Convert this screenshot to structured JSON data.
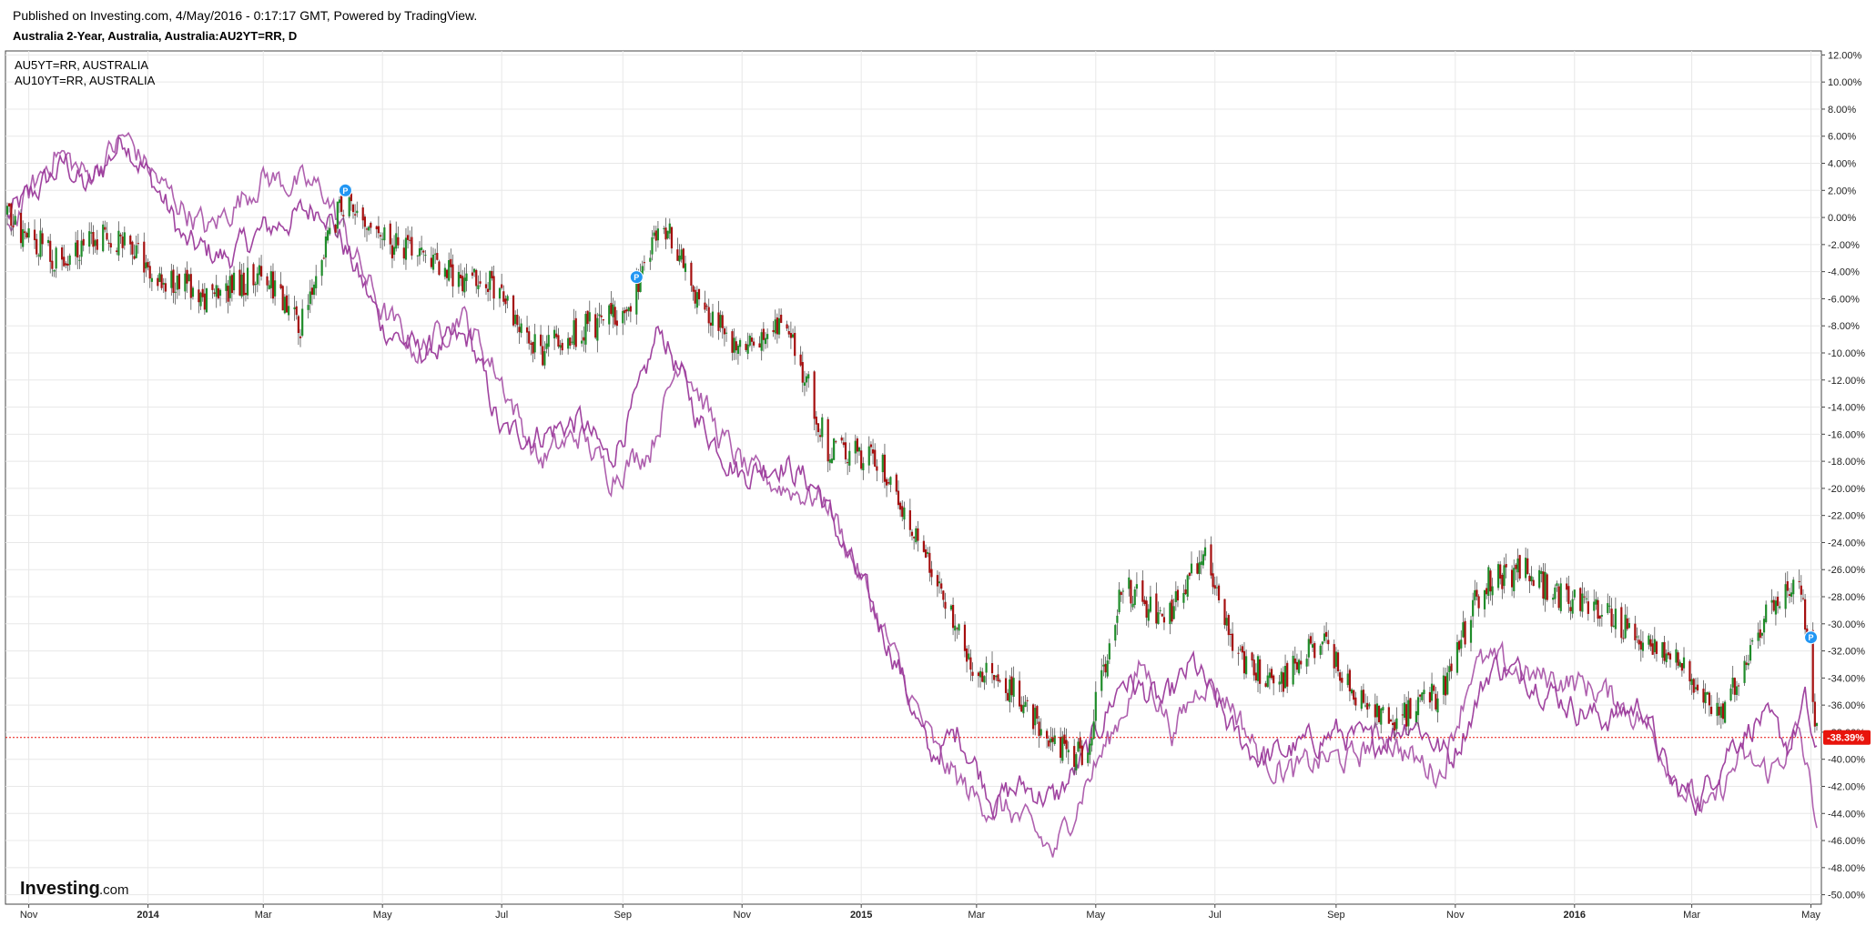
{
  "header": {
    "published": "Published on Investing.com, 4/May/2016 - 0:17:17 GMT, Powered by TradingView.",
    "title": "Australia 2-Year, Australia, Australia:AU2YT=RR, D"
  },
  "legend": [
    "AU5YT=RR, AUSTRALIA",
    "AU10YT=RR, AUSTRALIA"
  ],
  "brand": {
    "main": "Investing",
    "suffix": ".com"
  },
  "colors": {
    "up": "#1f8c2a",
    "down": "#a50f0f",
    "compare": "#9b3a9b",
    "last_value_bg": "#e8140c",
    "marker": "#2196f3",
    "grid": "#e8e8e8"
  },
  "chart_data": {
    "type": "line",
    "subtype": "percentage-change candlestick with comparison series",
    "y_unit": "%",
    "ylim": [
      -51,
      13
    ],
    "y_ticks": [
      12,
      10,
      8,
      6,
      4,
      2,
      0,
      -2,
      -4,
      -6,
      -8,
      -10,
      -12,
      -14,
      -16,
      -18,
      -20,
      -22,
      -24,
      -26,
      -28,
      -30,
      -32,
      -34,
      -36,
      -38,
      -40,
      -42,
      -44,
      -46,
      -48,
      -50
    ],
    "y_tick_labels": [
      "12.00%",
      "10.00%",
      "8.00%",
      "6.00%",
      "4.00%",
      "2.00%",
      "0.00%",
      "-2.00%",
      "-4.00%",
      "-6.00%",
      "-8.00%",
      "-10.00%",
      "-12.00%",
      "-14.00%",
      "-16.00%",
      "-18.00%",
      "-20.00%",
      "-22.00%",
      "-24.00%",
      "-26.00%",
      "-28.00%",
      "-30.00%",
      "-32.00%",
      "-34.00%",
      "-36.00%",
      "-38.00%",
      "-40.00%",
      "-42.00%",
      "-44.00%",
      "-46.00%",
      "-48.00%",
      "-50.00%"
    ],
    "x_range": [
      "2013-10-21",
      "2016-05-04"
    ],
    "x_ticks": [
      {
        "label": "Nov",
        "date": "2013-11-01",
        "bold": false
      },
      {
        "label": "2014",
        "date": "2014-01-01",
        "bold": true
      },
      {
        "label": "Mar",
        "date": "2014-03-01",
        "bold": false
      },
      {
        "label": "May",
        "date": "2014-05-01",
        "bold": false
      },
      {
        "label": "Jul",
        "date": "2014-07-01",
        "bold": false
      },
      {
        "label": "Sep",
        "date": "2014-09-01",
        "bold": false
      },
      {
        "label": "Nov",
        "date": "2014-11-01",
        "bold": false
      },
      {
        "label": "2015",
        "date": "2015-01-01",
        "bold": true
      },
      {
        "label": "Mar",
        "date": "2015-03-01",
        "bold": false
      },
      {
        "label": "May",
        "date": "2015-05-01",
        "bold": false
      },
      {
        "label": "Jul",
        "date": "2015-07-01",
        "bold": false
      },
      {
        "label": "Sep",
        "date": "2015-09-01",
        "bold": false
      },
      {
        "label": "Nov",
        "date": "2015-11-01",
        "bold": false
      },
      {
        "label": "2016",
        "date": "2016-01-01",
        "bold": true
      },
      {
        "label": "Mar",
        "date": "2016-03-01",
        "bold": false
      },
      {
        "label": "May",
        "date": "2016-05-01",
        "bold": false
      }
    ],
    "last_value": -38.39,
    "last_value_label": "-38.39%",
    "markers": [
      {
        "date": "2014-04-12",
        "value": 2.0,
        "label": "P"
      },
      {
        "date": "2014-09-08",
        "value": -4.4,
        "label": "P"
      },
      {
        "date": "2016-05-01",
        "value": -31.0,
        "label": "P"
      }
    ],
    "series": [
      {
        "name": "AUSTRALIA 2-YEAR",
        "style": "candlestick",
        "dates": [
          "2013-10-21",
          "2013-11-15",
          "2013-12-10",
          "2014-01-05",
          "2014-02-01",
          "2014-03-01",
          "2014-03-20",
          "2014-04-10",
          "2014-05-05",
          "2014-06-01",
          "2014-06-25",
          "2014-07-20",
          "2014-08-15",
          "2014-09-05",
          "2014-09-20",
          "2014-10-10",
          "2014-11-01",
          "2014-11-25",
          "2014-12-15",
          "2015-01-10",
          "2015-02-01",
          "2015-02-25",
          "2015-03-20",
          "2015-04-10",
          "2015-04-25",
          "2015-05-15",
          "2015-06-05",
          "2015-06-25",
          "2015-07-15",
          "2015-08-05",
          "2015-08-25",
          "2015-09-15",
          "2015-10-05",
          "2015-10-25",
          "2015-11-15",
          "2015-12-05",
          "2015-12-25",
          "2016-01-15",
          "2016-02-05",
          "2016-02-25",
          "2016-03-15",
          "2016-04-05",
          "2016-04-25",
          "2016-05-04"
        ],
        "values": [
          0.0,
          -3.0,
          -1.0,
          -4.0,
          -6.0,
          -4.0,
          -8.0,
          1.0,
          -2.0,
          -4.0,
          -5.0,
          -10.0,
          -8.0,
          -7.0,
          0.0,
          -6.0,
          -10.0,
          -8.0,
          -17.0,
          -18.0,
          -24.0,
          -33.0,
          -35.0,
          -39.0,
          -40.0,
          -27.0,
          -30.0,
          -25.0,
          -33.0,
          -34.0,
          -31.0,
          -36.0,
          -37.0,
          -35.0,
          -27.0,
          -26.0,
          -28.0,
          -29.0,
          -31.0,
          -33.0,
          -37.0,
          -30.0,
          -26.0,
          -38.39
        ]
      },
      {
        "name": "AU5YT=RR, AUSTRALIA",
        "style": "line",
        "dates": [
          "2013-10-21",
          "2013-11-20",
          "2013-12-01",
          "2013-12-20",
          "2014-01-10",
          "2014-01-20",
          "2014-02-10",
          "2014-03-01",
          "2014-04-01",
          "2014-05-01",
          "2014-05-20",
          "2014-06-15",
          "2014-07-01",
          "2014-07-20",
          "2014-08-10",
          "2014-08-25",
          "2014-09-10",
          "2014-09-20",
          "2014-10-10",
          "2014-11-01",
          "2014-11-20",
          "2014-12-10",
          "2014-12-25",
          "2015-01-20",
          "2015-02-05",
          "2015-02-20",
          "2015-03-10",
          "2015-03-25",
          "2015-04-10",
          "2015-04-25",
          "2015-05-15",
          "2015-06-05",
          "2015-06-20",
          "2015-07-10",
          "2015-07-25",
          "2015-08-15",
          "2015-09-01",
          "2015-09-20",
          "2015-10-10",
          "2015-10-30",
          "2015-11-20",
          "2015-12-10",
          "2015-12-30",
          "2016-01-15",
          "2016-02-05",
          "2016-02-20",
          "2016-03-05",
          "2016-03-20",
          "2016-04-05",
          "2016-04-20",
          "2016-04-28",
          "2016-05-04"
        ],
        "values": [
          0.0,
          4.0,
          2.0,
          6.0,
          1.0,
          -2.0,
          -3.0,
          -1.0,
          1.0,
          -8.0,
          -10.0,
          -9.0,
          -16.0,
          -16.0,
          -15.0,
          -18.0,
          -13.0,
          -8.0,
          -15.0,
          -19.0,
          -18.0,
          -20.0,
          -25.0,
          -33.0,
          -40.0,
          -38.0,
          -43.0,
          -42.0,
          -43.0,
          -40.0,
          -34.0,
          -36.0,
          -33.0,
          -38.0,
          -40.0,
          -39.0,
          -38.0,
          -39.0,
          -37.0,
          -40.0,
          -33.0,
          -34.0,
          -36.0,
          -37.0,
          -36.0,
          -42.0,
          -43.0,
          -39.0,
          -37.0,
          -39.0,
          -36.0,
          -40.0
        ]
      },
      {
        "name": "AU10YT=RR, AUSTRALIA",
        "style": "line",
        "dates": [
          "2013-10-21",
          "2013-11-15",
          "2013-12-01",
          "2013-12-20",
          "2014-01-10",
          "2014-02-01",
          "2014-03-01",
          "2014-04-01",
          "2014-05-01",
          "2014-05-20",
          "2014-06-10",
          "2014-07-01",
          "2014-07-20",
          "2014-08-10",
          "2014-08-25",
          "2014-09-15",
          "2014-10-01",
          "2014-10-20",
          "2014-11-05",
          "2014-11-25",
          "2014-12-15",
          "2015-01-05",
          "2015-01-25",
          "2015-02-10",
          "2015-03-01",
          "2015-03-20",
          "2015-04-10",
          "2015-04-25",
          "2015-05-10",
          "2015-05-25",
          "2015-06-10",
          "2015-06-25",
          "2015-07-10",
          "2015-07-25",
          "2015-08-10",
          "2015-08-25",
          "2015-09-10",
          "2015-09-25",
          "2015-10-10",
          "2015-10-25",
          "2015-11-10",
          "2015-11-25",
          "2015-12-10",
          "2015-12-25",
          "2016-01-15",
          "2016-02-05",
          "2016-02-25",
          "2016-03-10",
          "2016-03-25",
          "2016-04-10",
          "2016-04-25",
          "2016-05-04"
        ],
        "values": [
          -1.0,
          5.0,
          3.0,
          6.0,
          2.0,
          -1.0,
          3.0,
          2.0,
          -7.0,
          -10.0,
          -7.0,
          -12.0,
          -18.0,
          -16.0,
          -19.0,
          -17.0,
          -10.0,
          -16.0,
          -19.0,
          -20.0,
          -21.0,
          -28.0,
          -35.0,
          -40.0,
          -43.0,
          -44.0,
          -47.0,
          -42.0,
          -38.0,
          -33.0,
          -38.0,
          -34.0,
          -36.0,
          -40.0,
          -41.0,
          -40.0,
          -40.0,
          -38.0,
          -40.0,
          -41.0,
          -33.0,
          -33.0,
          -34.0,
          -34.0,
          -35.0,
          -37.0,
          -42.0,
          -44.0,
          -40.0,
          -41.0,
          -38.0,
          -44.5
        ]
      }
    ]
  }
}
